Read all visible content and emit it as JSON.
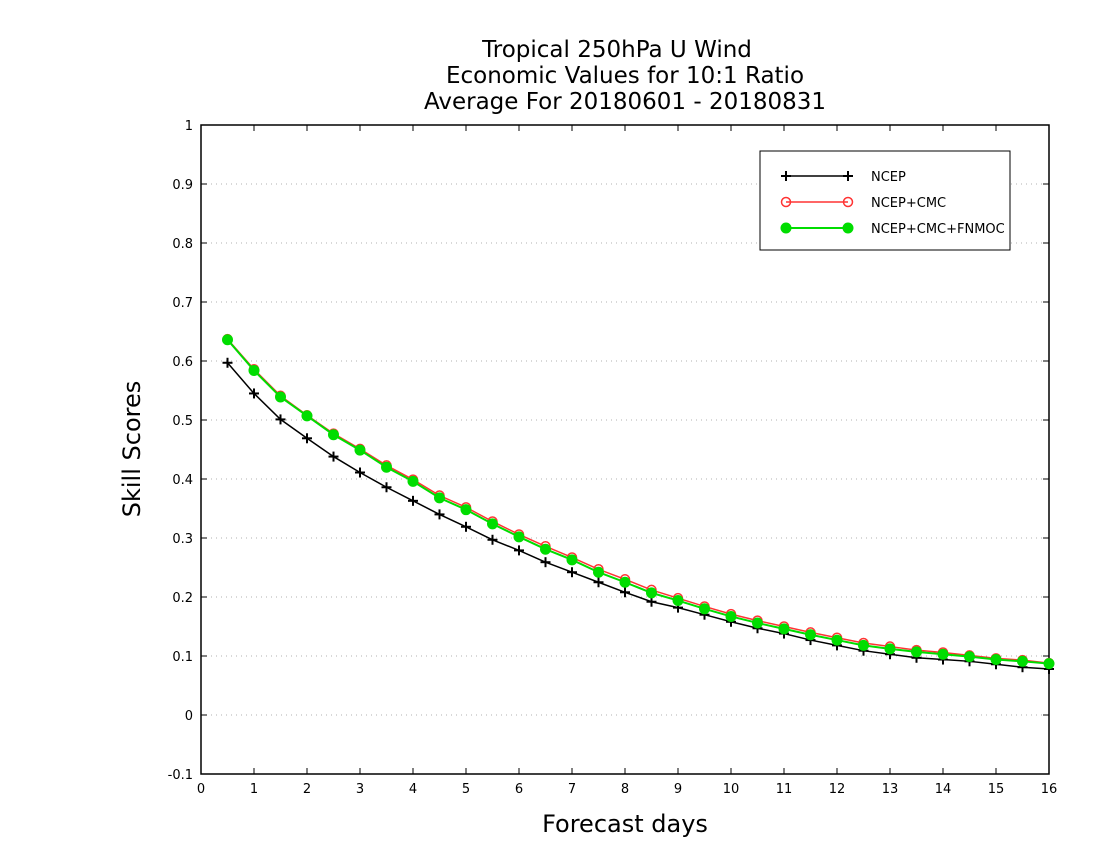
{
  "chart_data": {
    "type": "line",
    "title_lines": [
      "Tropical 250hPa U Wind",
      "Economic Values for 10:1 Ratio",
      "Average For 20180601 - 20180831"
    ],
    "xlabel": "Forecast days",
    "ylabel": "Skill Scores",
    "xlim": [
      0,
      16
    ],
    "ylim": [
      -0.1,
      1
    ],
    "xticks": [
      "0",
      "1",
      "2",
      "3",
      "4",
      "5",
      "6",
      "7",
      "8",
      "9",
      "10",
      "11",
      "12",
      "13",
      "14",
      "15",
      "16"
    ],
    "yticks": [
      "-0.1",
      "0",
      "0.1",
      "0.2",
      "0.3",
      "0.4",
      "0.5",
      "0.6",
      "0.7",
      "0.8",
      "0.9",
      "1"
    ],
    "grid": true,
    "legend_position": "top-right",
    "x": [
      0.5,
      1,
      1.5,
      2,
      2.5,
      3,
      3.5,
      4,
      4.5,
      5,
      5.5,
      6,
      6.5,
      7,
      7.5,
      8,
      8.5,
      9,
      9.5,
      10,
      10.5,
      11,
      11.5,
      12,
      12.5,
      13,
      13.5,
      14,
      14.5,
      15,
      15.5,
      16
    ],
    "series": [
      {
        "name": "NCEP",
        "color": "#000000",
        "marker": "plus",
        "values": [
          0.597,
          0.545,
          0.501,
          0.469,
          0.438,
          0.411,
          0.386,
          0.363,
          0.34,
          0.319,
          0.297,
          0.279,
          0.259,
          0.242,
          0.225,
          0.208,
          0.192,
          0.182,
          0.17,
          0.158,
          0.147,
          0.138,
          0.127,
          0.118,
          0.109,
          0.103,
          0.097,
          0.094,
          0.091,
          0.086,
          0.081,
          0.078
        ]
      },
      {
        "name": "NCEP+CMC",
        "color": "#ff3333",
        "marker": "open-circle",
        "values": [
          0.637,
          0.586,
          0.541,
          0.508,
          0.477,
          0.451,
          0.423,
          0.399,
          0.372,
          0.352,
          0.328,
          0.306,
          0.286,
          0.267,
          0.247,
          0.23,
          0.212,
          0.198,
          0.184,
          0.171,
          0.16,
          0.15,
          0.14,
          0.131,
          0.122,
          0.116,
          0.11,
          0.106,
          0.101,
          0.096,
          0.093,
          0.088
        ]
      },
      {
        "name": "NCEP+CMC+FNMOC",
        "color": "#00dd00",
        "marker": "filled-circle",
        "values": [
          0.636,
          0.584,
          0.539,
          0.507,
          0.475,
          0.449,
          0.42,
          0.396,
          0.368,
          0.348,
          0.324,
          0.302,
          0.281,
          0.263,
          0.242,
          0.225,
          0.207,
          0.194,
          0.18,
          0.167,
          0.156,
          0.146,
          0.136,
          0.127,
          0.118,
          0.112,
          0.107,
          0.103,
          0.099,
          0.094,
          0.091,
          0.087
        ]
      }
    ]
  }
}
